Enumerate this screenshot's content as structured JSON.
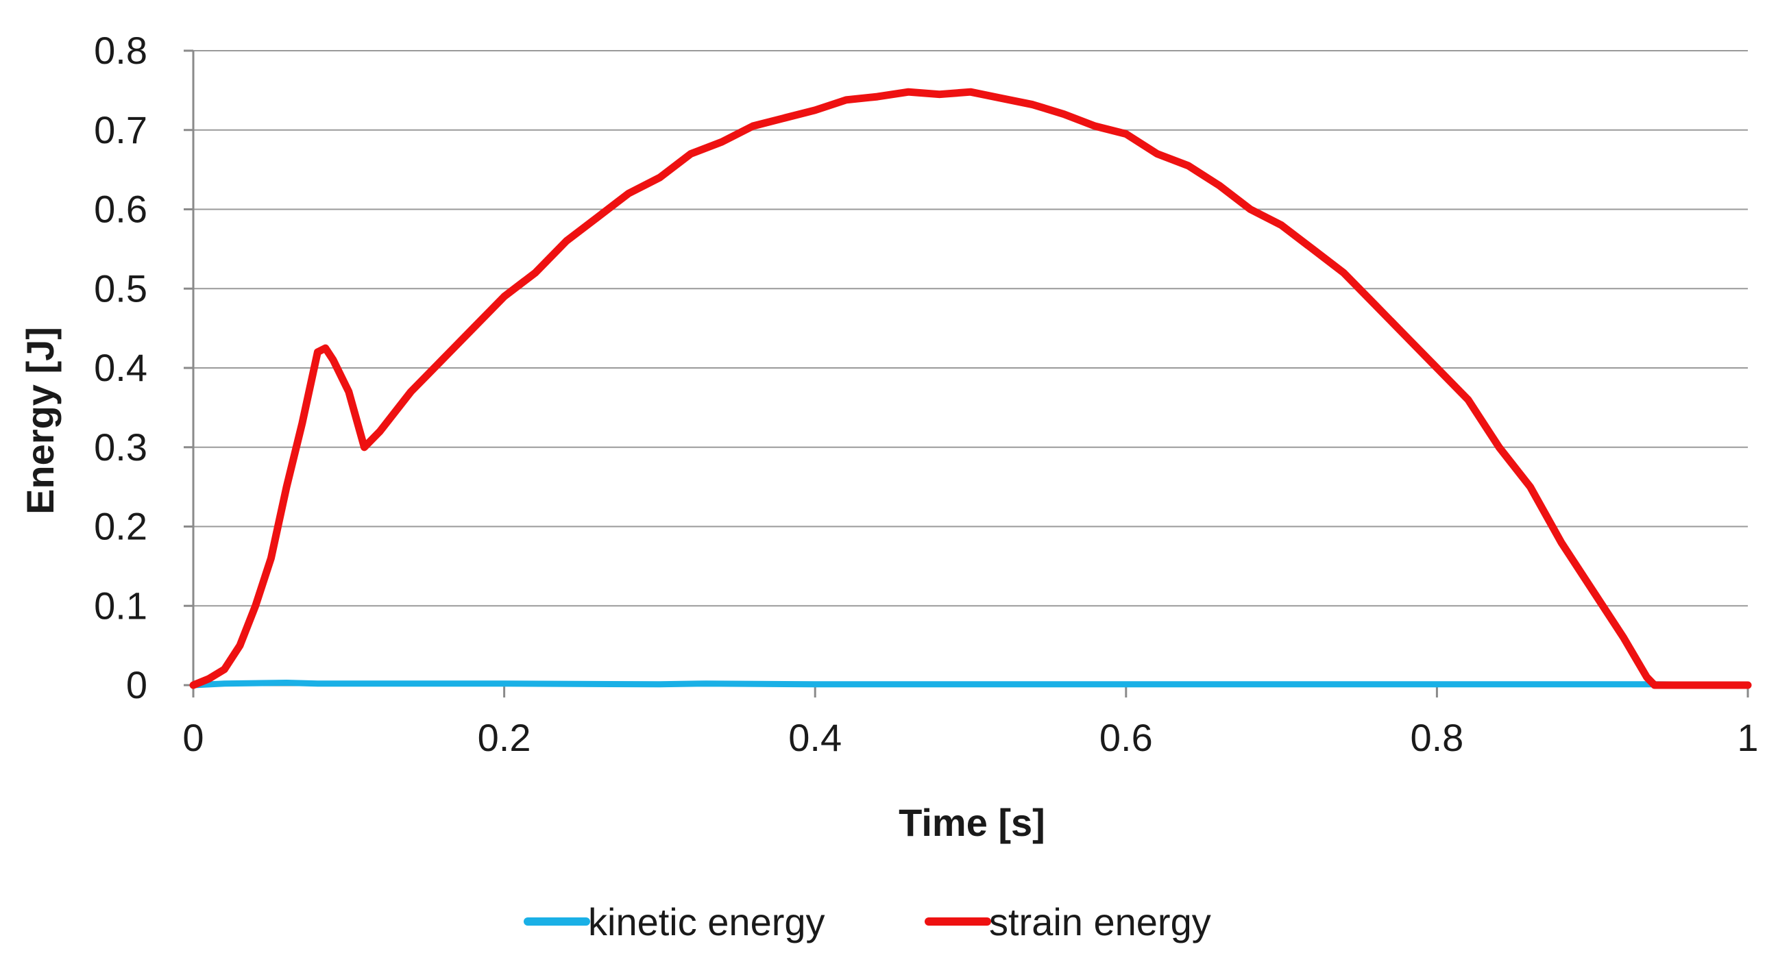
{
  "chart_data": {
    "type": "line",
    "title": "",
    "xlabel": "Time [s]",
    "ylabel": "Energy [J]",
    "xlim": [
      0,
      1
    ],
    "ylim": [
      0,
      0.8
    ],
    "x_ticks": [
      0,
      0.2,
      0.4,
      0.6,
      0.8,
      1
    ],
    "x_tick_labels": [
      "0",
      "0.2",
      "0.4",
      "0.6",
      "0.8",
      "1"
    ],
    "y_ticks": [
      0,
      0.1,
      0.2,
      0.3,
      0.4,
      0.5,
      0.6,
      0.7,
      0.8
    ],
    "y_tick_labels": [
      "0",
      "0.1",
      "0.2",
      "0.3",
      "0.4",
      "0.5",
      "0.6",
      "0.7",
      "0.8"
    ],
    "grid": "horizontal",
    "legend_position": "bottom",
    "series": [
      {
        "name": "kinetic energy",
        "color": "#1ab0e6",
        "x": [
          0,
          0.02,
          0.06,
          0.08,
          0.12,
          0.2,
          0.3,
          0.33,
          0.4,
          0.6,
          0.8,
          0.94,
          1
        ],
        "y": [
          0,
          0.002,
          0.003,
          0.002,
          0.002,
          0.002,
          0.001,
          0.002,
          0.001,
          0.001,
          0.001,
          0.001,
          0
        ]
      },
      {
        "name": "strain energy",
        "color": "#ee1111",
        "x": [
          0,
          0.01,
          0.02,
          0.03,
          0.04,
          0.05,
          0.06,
          0.07,
          0.08,
          0.085,
          0.09,
          0.1,
          0.11,
          0.12,
          0.14,
          0.16,
          0.18,
          0.2,
          0.22,
          0.24,
          0.26,
          0.28,
          0.3,
          0.32,
          0.34,
          0.36,
          0.38,
          0.4,
          0.42,
          0.44,
          0.46,
          0.48,
          0.5,
          0.52,
          0.54,
          0.56,
          0.58,
          0.6,
          0.62,
          0.64,
          0.66,
          0.68,
          0.7,
          0.72,
          0.74,
          0.76,
          0.78,
          0.8,
          0.82,
          0.84,
          0.86,
          0.88,
          0.9,
          0.92,
          0.935,
          0.94,
          0.96,
          1
        ],
        "y": [
          0,
          0.008,
          0.02,
          0.05,
          0.1,
          0.16,
          0.25,
          0.33,
          0.42,
          0.425,
          0.41,
          0.37,
          0.3,
          0.32,
          0.37,
          0.41,
          0.45,
          0.49,
          0.52,
          0.56,
          0.59,
          0.62,
          0.64,
          0.67,
          0.685,
          0.705,
          0.715,
          0.725,
          0.738,
          0.742,
          0.748,
          0.745,
          0.748,
          0.74,
          0.732,
          0.72,
          0.705,
          0.695,
          0.67,
          0.655,
          0.63,
          0.6,
          0.58,
          0.55,
          0.52,
          0.48,
          0.44,
          0.4,
          0.36,
          0.3,
          0.25,
          0.18,
          0.12,
          0.06,
          0.01,
          0,
          0,
          0
        ]
      }
    ]
  }
}
